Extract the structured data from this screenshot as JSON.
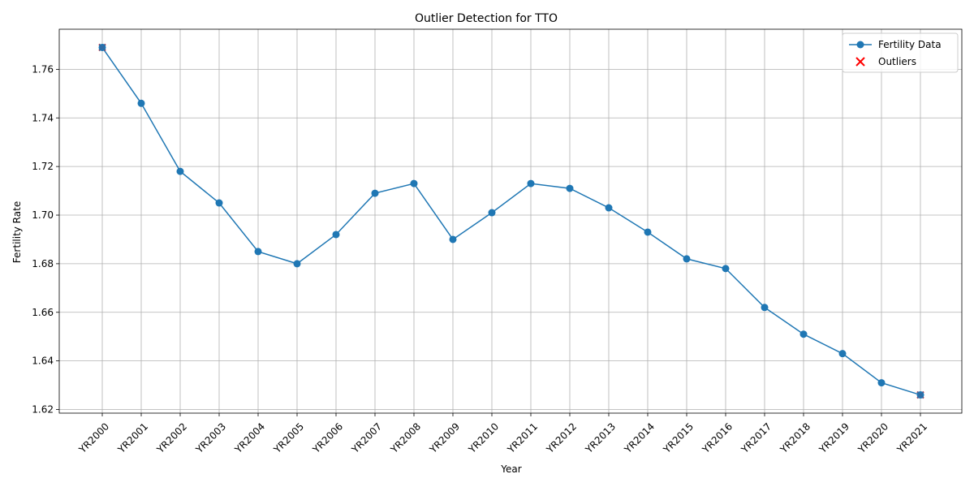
{
  "chart_data": {
    "type": "line",
    "title": "Outlier Detection for TTO",
    "xlabel": "Year",
    "ylabel": "Fertility Rate",
    "categories": [
      "YR2000",
      "YR2001",
      "YR2002",
      "YR2003",
      "YR2004",
      "YR2005",
      "YR2006",
      "YR2007",
      "YR2008",
      "YR2009",
      "YR2010",
      "YR2011",
      "YR2012",
      "YR2013",
      "YR2014",
      "YR2015",
      "YR2016",
      "YR2017",
      "YR2018",
      "YR2019",
      "YR2020",
      "YR2021"
    ],
    "series": [
      {
        "name": "Fertility Data",
        "values": [
          1.769,
          1.746,
          1.718,
          1.705,
          1.685,
          1.68,
          1.692,
          1.709,
          1.713,
          1.69,
          1.701,
          1.713,
          1.711,
          1.703,
          1.693,
          1.682,
          1.678,
          1.662,
          1.651,
          1.643,
          1.631,
          1.626
        ],
        "color": "#1f77b4",
        "marker": "circle"
      }
    ],
    "outliers": {
      "name": "Outliers",
      "color": "#ff0000",
      "marker": "x",
      "categories": [
        "YR2000",
        "YR2021"
      ],
      "values": [
        1.769,
        1.626
      ]
    },
    "ylim": [
      1.6185,
      1.7765
    ],
    "yticks": [
      1.62,
      1.64,
      1.66,
      1.68,
      1.7,
      1.72,
      1.74,
      1.76
    ],
    "grid": true,
    "legend_position": "top-right"
  }
}
